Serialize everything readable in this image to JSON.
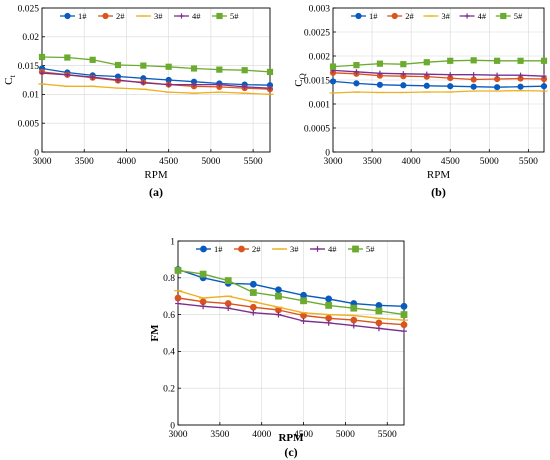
{
  "colors": {
    "1#": "#0a5bbf",
    "2#": "#d9541e",
    "3#": "#eeb020",
    "4#": "#7b2f8e",
    "5#": "#6bab30"
  },
  "chart_data": [
    {
      "type": "line",
      "panel": "(a)",
      "xlabel": "RPM",
      "ylabel_main": "C",
      "ylabel_sub": "t",
      "xlim": [
        3000,
        5700
      ],
      "ylim": [
        0,
        0.025
      ],
      "xticks": [
        3000,
        3500,
        4000,
        4500,
        5000,
        5500
      ],
      "yticks": [
        0,
        0.005,
        0.01,
        0.015,
        0.02,
        0.025
      ],
      "ytick_labels": [
        "0",
        "0.005",
        "0.01",
        "0.015",
        "0.02",
        "0.025"
      ],
      "legend_position": "top",
      "x": [
        3000,
        3300,
        3600,
        3900,
        4200,
        4500,
        4800,
        5100,
        5400,
        5700
      ],
      "series": [
        {
          "name": "1#",
          "values": [
            0.0145,
            0.0138,
            0.0133,
            0.0131,
            0.0128,
            0.0125,
            0.0122,
            0.0119,
            0.0117,
            0.0116
          ]
        },
        {
          "name": "2#",
          "values": [
            0.0139,
            0.0134,
            0.0129,
            0.0124,
            0.0121,
            0.0117,
            0.0114,
            0.0113,
            0.0111,
            0.0109
          ]
        },
        {
          "name": "3#",
          "values": [
            0.0118,
            0.0114,
            0.0114,
            0.0111,
            0.0109,
            0.0104,
            0.0102,
            0.0104,
            0.0102,
            0.01
          ]
        },
        {
          "name": "4#",
          "values": [
            0.0137,
            0.0134,
            0.013,
            0.0125,
            0.012,
            0.0117,
            0.0117,
            0.0117,
            0.0113,
            0.0111
          ]
        },
        {
          "name": "5#",
          "values": [
            0.0165,
            0.0164,
            0.016,
            0.0151,
            0.015,
            0.0148,
            0.0145,
            0.0143,
            0.0142,
            0.0139
          ]
        }
      ]
    },
    {
      "type": "line",
      "panel": "(b)",
      "xlabel": "RPM",
      "ylabel_main": "C",
      "ylabel_sub": "Q",
      "xlim": [
        3000,
        5700
      ],
      "ylim": [
        0,
        0.003
      ],
      "xticks": [
        3000,
        3500,
        4000,
        4500,
        5000,
        5500
      ],
      "yticks": [
        0,
        0.0005,
        0.001,
        0.0015,
        0.002,
        0.0025,
        0.003
      ],
      "ytick_labels": [
        "0",
        "0.0005",
        "0.001",
        "0.0015",
        "0.002",
        "0.0025",
        "0.003"
      ],
      "legend_position": "top",
      "x": [
        3000,
        3300,
        3600,
        3900,
        4200,
        4500,
        4800,
        5100,
        5400,
        5700
      ],
      "series": [
        {
          "name": "1#",
          "values": [
            0.00147,
            0.00143,
            0.0014,
            0.00139,
            0.00138,
            0.00137,
            0.00136,
            0.00135,
            0.00136,
            0.00137
          ]
        },
        {
          "name": "2#",
          "values": [
            0.00165,
            0.00163,
            0.00159,
            0.00158,
            0.00157,
            0.00154,
            0.00151,
            0.00152,
            0.00153,
            0.00152
          ]
        },
        {
          "name": "3#",
          "values": [
            0.00123,
            0.00125,
            0.00124,
            0.00124,
            0.00125,
            0.00125,
            0.00127,
            0.00127,
            0.00128,
            0.00127
          ]
        },
        {
          "name": "4#",
          "values": [
            0.0017,
            0.00167,
            0.00164,
            0.00163,
            0.00162,
            0.00161,
            0.00161,
            0.0016,
            0.0016,
            0.00158
          ]
        },
        {
          "name": "5#",
          "values": [
            0.00178,
            0.00181,
            0.00184,
            0.00183,
            0.00187,
            0.0019,
            0.00191,
            0.0019,
            0.0019,
            0.0019
          ]
        }
      ]
    },
    {
      "type": "line",
      "panel": "(c)",
      "xlabel": "RPM",
      "ylabel_main": "FM",
      "ylabel_sub": "",
      "xlim": [
        3000,
        5700
      ],
      "ylim": [
        0,
        1
      ],
      "xticks": [
        3000,
        3500,
        4000,
        4500,
        5000,
        5500
      ],
      "yticks": [
        0,
        0.2,
        0.4,
        0.6,
        0.8,
        1
      ],
      "ytick_labels": [
        "0",
        "0.2",
        "0.4",
        "0.6",
        "0.8",
        "1"
      ],
      "legend_position": "top",
      "x": [
        3000,
        3300,
        3600,
        3900,
        4200,
        4500,
        4800,
        5100,
        5400,
        5700
      ],
      "series": [
        {
          "name": "1#",
          "values": [
            0.845,
            0.8,
            0.77,
            0.765,
            0.735,
            0.705,
            0.685,
            0.66,
            0.65,
            0.645
          ]
        },
        {
          "name": "2#",
          "values": [
            0.69,
            0.67,
            0.66,
            0.64,
            0.625,
            0.595,
            0.58,
            0.57,
            0.555,
            0.545
          ]
        },
        {
          "name": "3#",
          "values": [
            0.73,
            0.69,
            0.7,
            0.67,
            0.64,
            0.61,
            0.6,
            0.595,
            0.58,
            0.57
          ]
        },
        {
          "name": "4#",
          "values": [
            0.66,
            0.645,
            0.635,
            0.61,
            0.6,
            0.565,
            0.555,
            0.54,
            0.525,
            0.51
          ]
        },
        {
          "name": "5#",
          "values": [
            0.84,
            0.82,
            0.785,
            0.72,
            0.7,
            0.675,
            0.65,
            0.635,
            0.62,
            0.6
          ]
        }
      ]
    }
  ]
}
